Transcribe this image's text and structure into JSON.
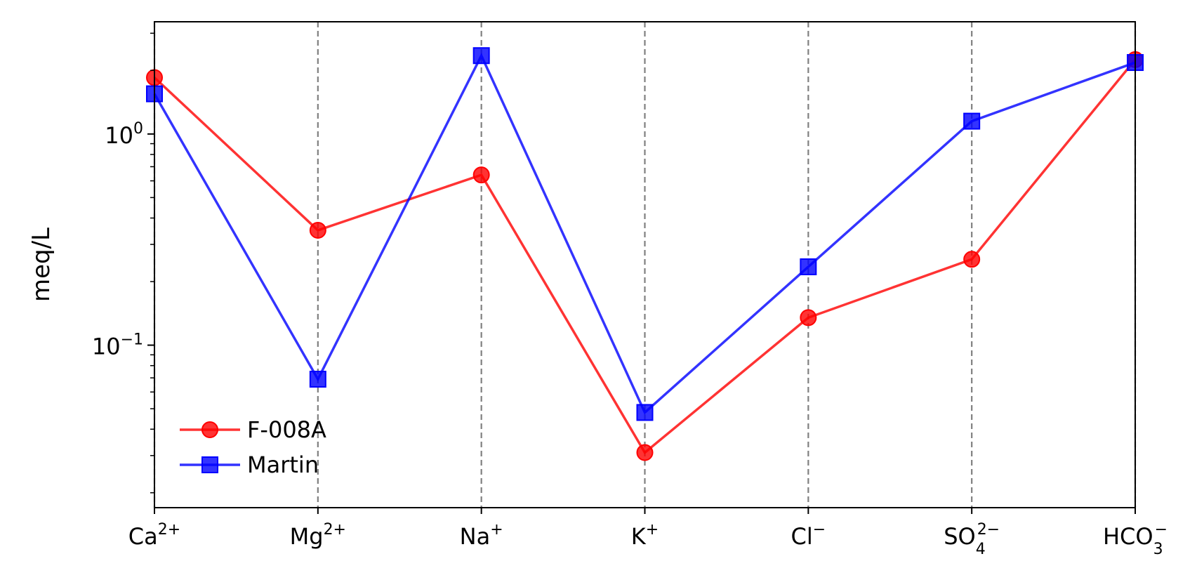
{
  "chart_data": {
    "type": "line",
    "ylabel": "meq/L",
    "yscale": "log",
    "ylim": [
      0.017,
      3.4
    ],
    "grid": "vertical dashed lines at each category",
    "legend_position": "lower-left",
    "categories": [
      {
        "base": "Ca",
        "sub": "",
        "sup": "2+"
      },
      {
        "base": "Mg",
        "sub": "",
        "sup": "2+"
      },
      {
        "base": "Na",
        "sub": "",
        "sup": "+"
      },
      {
        "base": "K",
        "sub": "",
        "sup": "+"
      },
      {
        "base": "Cl",
        "sub": "",
        "sup": "−"
      },
      {
        "base": "SO",
        "sub": "4",
        "sup": "2−"
      },
      {
        "base": "HCO",
        "sub": "3",
        "sup": "−"
      }
    ],
    "y_ticks": [
      {
        "value": 1.0,
        "base": "10",
        "exp": "0"
      },
      {
        "value": 0.1,
        "base": "10",
        "exp": "−1"
      }
    ],
    "series": [
      {
        "name": "F-008A",
        "color": "#ff0000",
        "marker": "circle",
        "values": [
          1.85,
          0.35,
          0.64,
          0.031,
          0.135,
          0.255,
          2.25
        ]
      },
      {
        "name": "Martin",
        "color": "#0000ff",
        "marker": "square",
        "values": [
          1.55,
          0.069,
          2.35,
          0.048,
          0.235,
          1.15,
          2.18
        ]
      }
    ]
  }
}
